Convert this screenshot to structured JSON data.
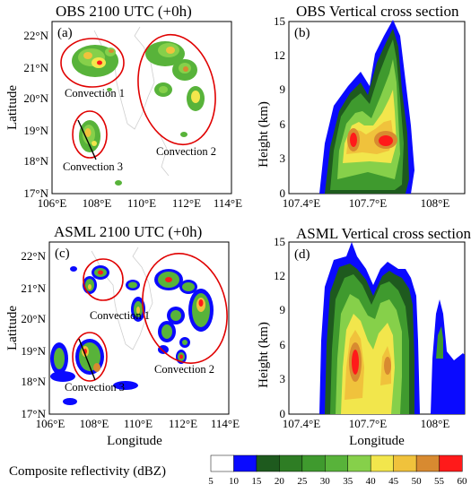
{
  "panels": {
    "a": {
      "title": "OBS 2100 UTC (+0h)",
      "label": "(a)",
      "ylabel": "Latitude",
      "xlabel": "",
      "xticks": [
        "106°E",
        "108°E",
        "110°E",
        "112°E",
        "114°E"
      ],
      "yticks": [
        "22°N",
        "21°N",
        "20°N",
        "19°N",
        "18°N",
        "17°N"
      ],
      "annotations": [
        "Convection 1",
        "Convection 2",
        "Convection 3"
      ]
    },
    "b": {
      "title": "OBS Vertical cross section",
      "label": "(b)",
      "ylabel": "Height (km)",
      "xlabel": "",
      "xticks": [
        "107.4°E",
        "107.7°E",
        "108°E"
      ],
      "yticks": [
        "15",
        "12",
        "9",
        "6",
        "3",
        "0"
      ]
    },
    "c": {
      "title": "ASML 2100 UTC (+0h)",
      "label": "(c)",
      "ylabel": "Latitude",
      "xlabel": "Longitude",
      "xticks": [
        "106°E",
        "108°E",
        "110°E",
        "112°E",
        "114°E"
      ],
      "yticks": [
        "22°N",
        "21°N",
        "20°N",
        "19°N",
        "18°N",
        "17°N"
      ],
      "annotations": [
        "Convection 1",
        "Convection 2",
        "Convection 3"
      ]
    },
    "d": {
      "title": "ASML Vertical cross section",
      "label": "(d)",
      "ylabel": "Height (km)",
      "xlabel": "Longitude",
      "xticks": [
        "107.4°E",
        "107.7°E",
        "108°E"
      ],
      "yticks": [
        "15",
        "12",
        "9",
        "6",
        "3",
        "0"
      ]
    }
  },
  "colorbar": {
    "label": "Composite reflectivity (dBZ)",
    "ticks": [
      "5",
      "10",
      "15",
      "20",
      "25",
      "30",
      "35",
      "40",
      "45",
      "50",
      "55",
      "60"
    ],
    "colors": [
      "#ffffff",
      "#0a0aff",
      "#1e5a1e",
      "#2e7d24",
      "#3f9a2e",
      "#58b33a",
      "#86d04a",
      "#f2e64c",
      "#f0c23c",
      "#d88a30",
      "#ff1a1a",
      "#b01a14"
    ]
  }
}
